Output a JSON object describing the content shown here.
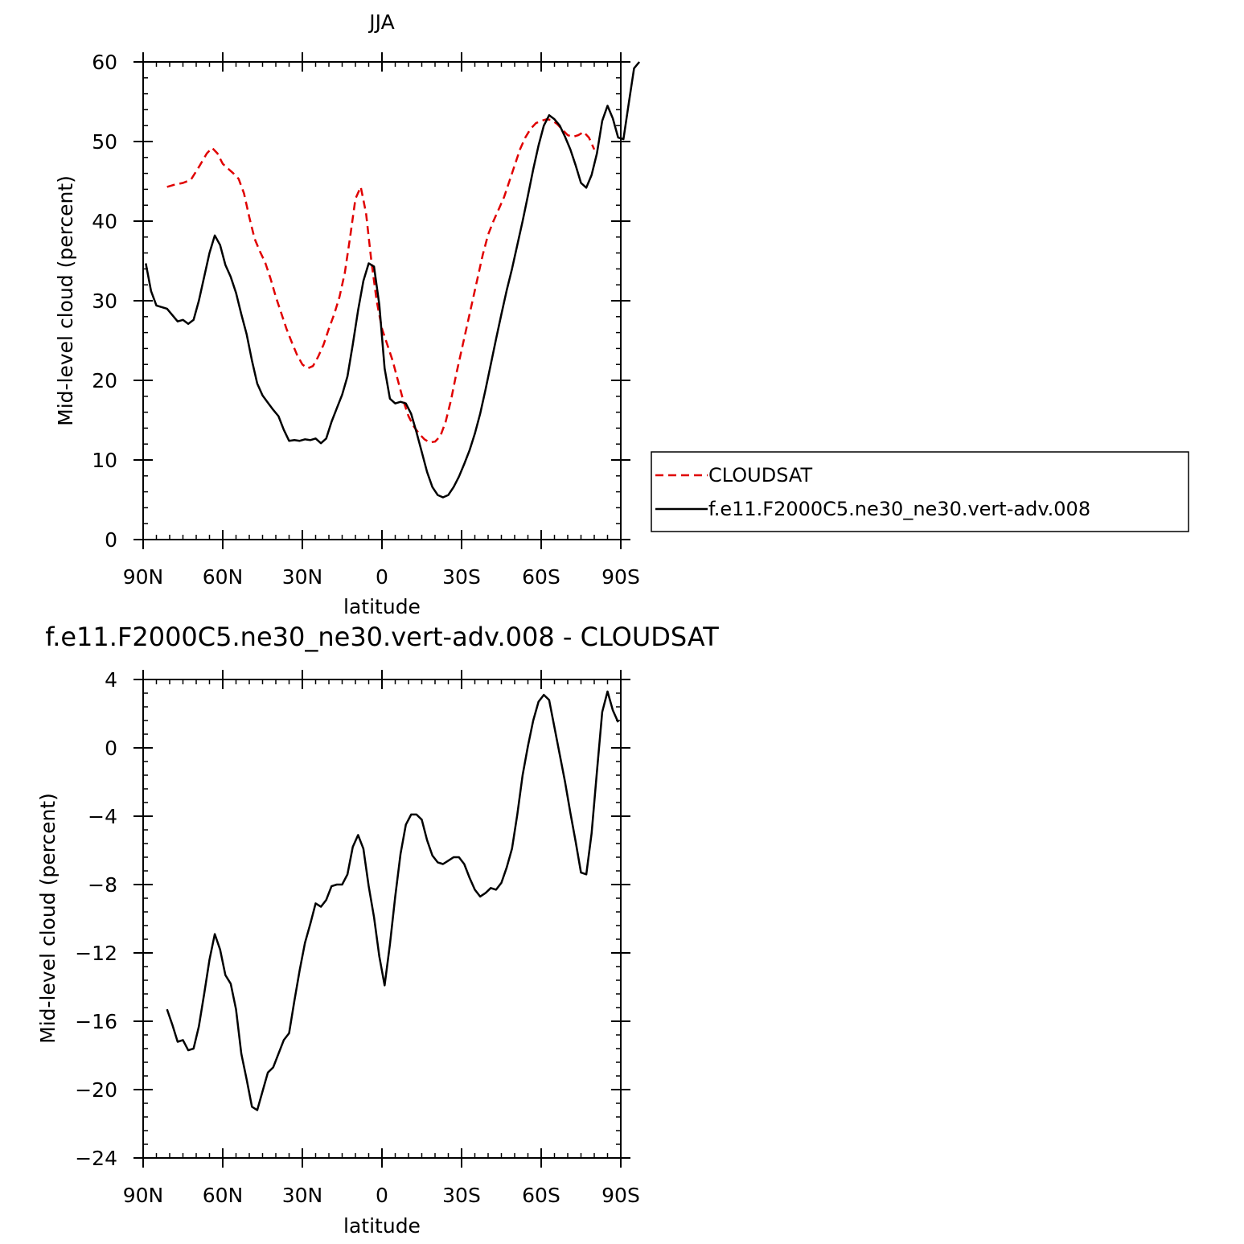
{
  "chart_data": [
    {
      "type": "line",
      "title": "JJA",
      "xlabel": "latitude",
      "ylabel": "Mid-level cloud (percent)",
      "xlim": [
        90,
        -90
      ],
      "ylim": [
        0,
        60
      ],
      "x_ticks": [
        90,
        60,
        30,
        0,
        -30,
        -60,
        -90
      ],
      "x_tick_labels": [
        "90N",
        "60N",
        "30N",
        "0",
        "30S",
        "60S",
        "90S"
      ],
      "y_ticks": [
        0,
        10,
        20,
        30,
        40,
        50,
        60
      ],
      "y_tick_labels": [
        "0",
        "10",
        "20",
        "30",
        "40",
        "50",
        "60"
      ],
      "legend_position": "right",
      "series": [
        {
          "name": "CLOUDSAT",
          "color": "#e00000",
          "dash": true,
          "points": [
            [
              81,
              44.3
            ],
            [
              78,
              44.6
            ],
            [
              75,
              44.8
            ],
            [
              72,
              45.2
            ],
            [
              69,
              46.8
            ],
            [
              66,
              48.5
            ],
            [
              64,
              49.2
            ],
            [
              62,
              48.5
            ],
            [
              60,
              47.2
            ],
            [
              58,
              46.6
            ],
            [
              56,
              46.0
            ],
            [
              54,
              45.3
            ],
            [
              52,
              43.5
            ],
            [
              50,
              40.5
            ],
            [
              48,
              37.8
            ],
            [
              46,
              36.2
            ],
            [
              44,
              34.8
            ],
            [
              42,
              32.8
            ],
            [
              40,
              30.5
            ],
            [
              38,
              28.5
            ],
            [
              36,
              26.5
            ],
            [
              34,
              24.8
            ],
            [
              32,
              23.2
            ],
            [
              30,
              22.0
            ],
            [
              28,
              21.5
            ],
            [
              26,
              21.8
            ],
            [
              24,
              23.0
            ],
            [
              22,
              24.5
            ],
            [
              20,
              26.5
            ],
            [
              18,
              28.3
            ],
            [
              16,
              30.5
            ],
            [
              14,
              33.5
            ],
            [
              12,
              38.0
            ],
            [
              10,
              42.8
            ],
            [
              8,
              44.3
            ],
            [
              6,
              41.0
            ],
            [
              4,
              35.0
            ],
            [
              2,
              30.0
            ],
            [
              0,
              26.5
            ],
            [
              -2,
              24.5
            ],
            [
              -4,
              22.5
            ],
            [
              -6,
              20.0
            ],
            [
              -8,
              17.5
            ],
            [
              -10,
              15.5
            ],
            [
              -12,
              14.2
            ],
            [
              -14,
              13.3
            ],
            [
              -16,
              12.6
            ],
            [
              -18,
              12.2
            ],
            [
              -20,
              12.3
            ],
            [
              -22,
              13.0
            ],
            [
              -24,
              14.8
            ],
            [
              -26,
              17.5
            ],
            [
              -28,
              20.8
            ],
            [
              -30,
              23.8
            ],
            [
              -32,
              26.8
            ],
            [
              -34,
              29.8
            ],
            [
              -36,
              32.8
            ],
            [
              -38,
              35.8
            ],
            [
              -40,
              38.3
            ],
            [
              -42,
              40.0
            ],
            [
              -44,
              41.5
            ],
            [
              -46,
              43.0
            ],
            [
              -48,
              45.0
            ],
            [
              -50,
              47.0
            ],
            [
              -52,
              49.0
            ],
            [
              -54,
              50.5
            ],
            [
              -56,
              51.6
            ],
            [
              -58,
              52.3
            ],
            [
              -60,
              52.6
            ],
            [
              -62,
              52.8
            ],
            [
              -64,
              52.7
            ],
            [
              -66,
              52.2
            ],
            [
              -68,
              51.5
            ],
            [
              -70,
              50.8
            ],
            [
              -72,
              50.6
            ],
            [
              -74,
              50.8
            ],
            [
              -76,
              51.2
            ],
            [
              -78,
              50.5
            ],
            [
              -80,
              49.0
            ]
          ]
        },
        {
          "name": "f.e11.F2000C5.ne30_ne30.vert-adv.008",
          "color": "#000000",
          "dash": false,
          "points": [
            [
              89,
              34.7
            ],
            [
              87,
              31.2
            ],
            [
              85,
              29.4
            ],
            [
              83,
              29.2
            ],
            [
              81,
              29.0
            ],
            [
              79,
              28.2
            ],
            [
              77,
              27.4
            ],
            [
              75,
              27.6
            ],
            [
              73,
              27.1
            ],
            [
              71,
              27.6
            ],
            [
              69,
              30.0
            ],
            [
              67,
              33.0
            ],
            [
              65,
              36.0
            ],
            [
              63,
              38.2
            ],
            [
              61,
              37.0
            ],
            [
              59,
              34.5
            ],
            [
              57,
              33.0
            ],
            [
              55,
              31.0
            ],
            [
              53,
              28.3
            ],
            [
              51,
              25.8
            ],
            [
              49,
              22.5
            ],
            [
              47,
              19.6
            ],
            [
              45,
              18.1
            ],
            [
              43,
              17.2
            ],
            [
              41,
              16.3
            ],
            [
              39,
              15.5
            ],
            [
              37,
              13.8
            ],
            [
              35,
              12.4
            ],
            [
              33,
              12.5
            ],
            [
              31,
              12.4
            ],
            [
              29,
              12.6
            ],
            [
              27,
              12.5
            ],
            [
              25,
              12.7
            ],
            [
              23,
              12.1
            ],
            [
              21,
              12.7
            ],
            [
              19,
              14.8
            ],
            [
              17,
              16.5
            ],
            [
              15,
              18.2
            ],
            [
              13,
              20.5
            ],
            [
              11,
              24.5
            ],
            [
              9,
              28.8
            ],
            [
              7,
              32.5
            ],
            [
              5,
              34.7
            ],
            [
              3,
              34.3
            ],
            [
              1,
              29.5
            ],
            [
              -1,
              21.5
            ],
            [
              -3,
              17.7
            ],
            [
              -5,
              17.1
            ],
            [
              -7,
              17.3
            ],
            [
              -9,
              17.1
            ],
            [
              -11,
              15.8
            ],
            [
              -13,
              13.5
            ],
            [
              -15,
              11.0
            ],
            [
              -17,
              8.5
            ],
            [
              -19,
              6.6
            ],
            [
              -21,
              5.6
            ],
            [
              -23,
              5.3
            ],
            [
              -25,
              5.6
            ],
            [
              -27,
              6.6
            ],
            [
              -29,
              7.9
            ],
            [
              -31,
              9.5
            ],
            [
              -33,
              11.2
            ],
            [
              -35,
              13.3
            ],
            [
              -37,
              15.8
            ],
            [
              -39,
              18.8
            ],
            [
              -41,
              22.0
            ],
            [
              -43,
              25.2
            ],
            [
              -45,
              28.3
            ],
            [
              -47,
              31.3
            ],
            [
              -49,
              34.0
            ],
            [
              -51,
              37.0
            ],
            [
              -53,
              40.0
            ],
            [
              -55,
              43.2
            ],
            [
              -57,
              46.5
            ],
            [
              -59,
              49.5
            ],
            [
              -61,
              52.0
            ],
            [
              -63,
              53.3
            ],
            [
              -65,
              52.8
            ],
            [
              -67,
              52.0
            ],
            [
              -69,
              50.6
            ],
            [
              -71,
              49.0
            ],
            [
              -73,
              47.0
            ],
            [
              -75,
              44.8
            ],
            [
              -77,
              44.2
            ],
            [
              -79,
              45.8
            ],
            [
              -81,
              48.5
            ],
            [
              -83,
              52.6
            ],
            [
              -85,
              54.5
            ],
            [
              -87,
              52.9
            ],
            [
              -89,
              50.5
            ],
            [
              -91,
              50.3
            ],
            [
              -93,
              54.8
            ],
            [
              -95,
              59.2
            ],
            [
              -97,
              60.0
            ]
          ]
        }
      ]
    },
    {
      "type": "line",
      "title": "f.e11.F2000C5.ne30_ne30.vert-adv.008 - CLOUDSAT",
      "xlabel": "latitude",
      "ylabel": "Mid-level cloud (percent)",
      "xlim": [
        90,
        -90
      ],
      "ylim": [
        -24,
        4
      ],
      "x_ticks": [
        90,
        60,
        30,
        0,
        -30,
        -60,
        -90
      ],
      "x_tick_labels": [
        "90N",
        "60N",
        "30N",
        "0",
        "30S",
        "60S",
        "90S"
      ],
      "y_ticks": [
        -24,
        -20,
        -16,
        -12,
        -8,
        -4,
        0,
        4
      ],
      "y_tick_labels": [
        "-24",
        "-20",
        "-16",
        "-12",
        "-8",
        "-4",
        "0",
        "4"
      ],
      "series": [
        {
          "color": "#000000",
          "dash": false,
          "points": [
            [
              81,
              -15.3
            ],
            [
              79,
              -16.2
            ],
            [
              77,
              -17.2
            ],
            [
              75,
              -17.1
            ],
            [
              73,
              -17.7
            ],
            [
              71,
              -17.6
            ],
            [
              69,
              -16.3
            ],
            [
              67,
              -14.4
            ],
            [
              65,
              -12.4
            ],
            [
              63,
              -10.9
            ],
            [
              61,
              -11.8
            ],
            [
              59,
              -13.3
            ],
            [
              57,
              -13.8
            ],
            [
              55,
              -15.3
            ],
            [
              53,
              -17.9
            ],
            [
              51,
              -19.4
            ],
            [
              49,
              -21.0
            ],
            [
              47,
              -21.2
            ],
            [
              45,
              -20.1
            ],
            [
              43,
              -19.0
            ],
            [
              41,
              -18.7
            ],
            [
              39,
              -17.9
            ],
            [
              37,
              -17.1
            ],
            [
              35,
              -16.7
            ],
            [
              33,
              -14.8
            ],
            [
              31,
              -13.0
            ],
            [
              29,
              -11.4
            ],
            [
              27,
              -10.3
            ],
            [
              25,
              -9.1
            ],
            [
              23,
              -9.3
            ],
            [
              21,
              -8.9
            ],
            [
              19,
              -8.1
            ],
            [
              17,
              -8.0
            ],
            [
              15,
              -8.0
            ],
            [
              13,
              -7.4
            ],
            [
              11,
              -5.8
            ],
            [
              9,
              -5.1
            ],
            [
              7,
              -5.9
            ],
            [
              5,
              -8.1
            ],
            [
              3,
              -9.9
            ],
            [
              1,
              -12.2
            ],
            [
              -1,
              -13.9
            ],
            [
              -3,
              -11.5
            ],
            [
              -5,
              -8.7
            ],
            [
              -7,
              -6.2
            ],
            [
              -9,
              -4.5
            ],
            [
              -11,
              -3.9
            ],
            [
              -13,
              -3.9
            ],
            [
              -15,
              -4.2
            ],
            [
              -17,
              -5.4
            ],
            [
              -19,
              -6.3
            ],
            [
              -21,
              -6.7
            ],
            [
              -23,
              -6.8
            ],
            [
              -25,
              -6.6
            ],
            [
              -27,
              -6.4
            ],
            [
              -29,
              -6.4
            ],
            [
              -31,
              -6.8
            ],
            [
              -33,
              -7.6
            ],
            [
              -35,
              -8.3
            ],
            [
              -37,
              -8.7
            ],
            [
              -39,
              -8.5
            ],
            [
              -41,
              -8.2
            ],
            [
              -43,
              -8.3
            ],
            [
              -45,
              -7.9
            ],
            [
              -47,
              -7.0
            ],
            [
              -49,
              -5.9
            ],
            [
              -51,
              -3.9
            ],
            [
              -53,
              -1.6
            ],
            [
              -55,
              0.1
            ],
            [
              -57,
              1.6
            ],
            [
              -59,
              2.7
            ],
            [
              -61,
              3.1
            ],
            [
              -63,
              2.8
            ],
            [
              -65,
              1.2
            ],
            [
              -67,
              -0.4
            ],
            [
              -69,
              -2.0
            ],
            [
              -71,
              -3.8
            ],
            [
              -73,
              -5.5
            ],
            [
              -75,
              -7.3
            ],
            [
              -77,
              -7.4
            ],
            [
              -79,
              -5.0
            ],
            [
              -81,
              -1.4
            ],
            [
              -83,
              2.1
            ],
            [
              -85,
              3.3
            ],
            [
              -87,
              2.2
            ],
            [
              -89,
              1.5
            ]
          ]
        }
      ]
    }
  ]
}
